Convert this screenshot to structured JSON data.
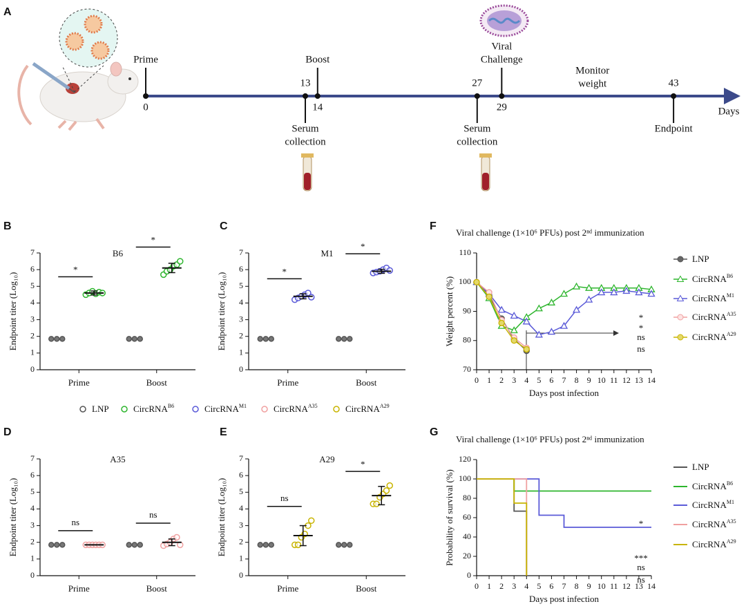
{
  "timeline": {
    "panel": "A",
    "axis_label": "Days",
    "annotation": [
      "Monitor",
      "weight"
    ],
    "events": [
      {
        "day": 0,
        "label": [
          "Prime"
        ],
        "side": "above"
      },
      {
        "day": 13,
        "label": [
          "Serum",
          "collection"
        ],
        "side": "below"
      },
      {
        "day": 14,
        "label": [
          "Boost"
        ],
        "side": "above"
      },
      {
        "day": 27,
        "label": [
          "Serum",
          "collection"
        ],
        "side": "below"
      },
      {
        "day": 29,
        "label": [
          "Viral",
          "Challenge"
        ],
        "side": "above"
      },
      {
        "day": 43,
        "label": [
          "Endpoint"
        ],
        "side": "below"
      }
    ]
  },
  "shared_legend": [
    {
      "name": "LNP",
      "color": "#555555"
    },
    {
      "name": "CircRNA",
      "sup": "B6",
      "color": "#2db52d"
    },
    {
      "name": "CircRNA",
      "sup": "M1",
      "color": "#5a5ad8"
    },
    {
      "name": "CircRNA",
      "sup": "A35",
      "color": "#f0a0a0"
    },
    {
      "name": "CircRNA",
      "sup": "A29",
      "color": "#c8b400"
    }
  ],
  "chart_data": [
    {
      "panel": "B",
      "type": "dot",
      "title": "B6",
      "ylabel": "Endpoint titer (Log₁₀)",
      "categories": [
        "Prime",
        "Boost"
      ],
      "ylim": [
        0,
        7
      ],
      "yticks": [
        0,
        1,
        2,
        3,
        4,
        5,
        6,
        7
      ],
      "series": [
        {
          "color": "#555555",
          "values": [
            [
              1.85,
              1.85,
              1.85
            ],
            [
              1.85,
              1.85,
              1.85
            ]
          ]
        },
        {
          "color": "#2db52d",
          "values": [
            [
              4.5,
              4.6,
              4.7,
              4.55,
              4.65,
              4.6
            ],
            [
              5.7,
              5.9,
              6.0,
              6.2,
              6.3,
              6.5
            ]
          ],
          "mean": [
            4.6,
            6.1
          ],
          "sd": [
            0.12,
            0.28
          ]
        }
      ],
      "significance": [
        "*",
        "*"
      ]
    },
    {
      "panel": "C",
      "type": "dot",
      "title": "M1",
      "ylabel": "Endpoint titer (Log₁₀)",
      "categories": [
        "Prime",
        "Boost"
      ],
      "ylim": [
        0,
        7
      ],
      "yticks": [
        0,
        1,
        2,
        3,
        4,
        5,
        6,
        7
      ],
      "series": [
        {
          "color": "#555555",
          "values": [
            [
              1.85,
              1.85,
              1.85
            ],
            [
              1.85,
              1.85,
              1.85
            ]
          ]
        },
        {
          "color": "#5a5ad8",
          "values": [
            [
              4.2,
              4.3,
              4.4,
              4.5,
              4.6,
              4.35
            ],
            [
              5.8,
              5.85,
              5.9,
              6.0,
              6.1,
              5.95
            ]
          ],
          "mean": [
            4.4,
            5.9
          ],
          "sd": [
            0.15,
            0.12
          ]
        }
      ],
      "significance": [
        "*",
        "*"
      ]
    },
    {
      "panel": "D",
      "type": "dot",
      "title": "A35",
      "ylabel": "Endpoint titer (Log₁₀)",
      "categories": [
        "Prime",
        "Boost"
      ],
      "ylim": [
        0,
        7
      ],
      "yticks": [
        0,
        1,
        2,
        3,
        4,
        5,
        6,
        7
      ],
      "series": [
        {
          "color": "#555555",
          "values": [
            [
              1.85,
              1.85,
              1.85
            ],
            [
              1.85,
              1.85,
              1.85
            ]
          ]
        },
        {
          "color": "#f0a0a0",
          "values": [
            [
              1.85,
              1.85,
              1.85,
              1.85,
              1.85,
              1.85
            ],
            [
              1.8,
              1.9,
              2.0,
              2.2,
              2.3,
              1.85
            ]
          ],
          "mean": [
            1.85,
            2.0
          ],
          "sd": [
            0,
            0.2
          ]
        }
      ],
      "significance": [
        "ns",
        "ns"
      ]
    },
    {
      "panel": "E",
      "type": "dot",
      "title": "A29",
      "ylabel": "Endpoint titer (Log₁₀)",
      "categories": [
        "Prime",
        "Boost"
      ],
      "ylim": [
        0,
        7
      ],
      "yticks": [
        0,
        1,
        2,
        3,
        4,
        5,
        6,
        7
      ],
      "series": [
        {
          "color": "#555555",
          "values": [
            [
              1.85,
              1.85,
              1.85
            ],
            [
              1.85,
              1.85,
              1.85
            ]
          ]
        },
        {
          "color": "#c8b400",
          "values": [
            [
              1.85,
              1.85,
              2.3,
              2.5,
              3.0,
              3.3
            ],
            [
              4.3,
              4.3,
              4.7,
              4.9,
              5.1,
              5.4
            ]
          ],
          "mean": [
            2.4,
            4.8
          ],
          "sd": [
            0.6,
            0.55
          ]
        }
      ],
      "significance": [
        "ns",
        "*"
      ]
    },
    {
      "panel": "F",
      "type": "line",
      "title": "Viral challenge (1×10⁶ PFUs) post 2ⁿᵈ immunization",
      "xlabel": "Days post infection",
      "ylabel": "Weight percent (%)",
      "x": [
        0,
        1,
        2,
        3,
        4,
        5,
        6,
        7,
        8,
        9,
        10,
        11,
        12,
        13,
        14
      ],
      "xlim": [
        0,
        14
      ],
      "xticks": [
        0,
        1,
        2,
        3,
        4,
        5,
        6,
        7,
        8,
        9,
        10,
        11,
        12,
        13,
        14
      ],
      "ylim": [
        70,
        110
      ],
      "yticks": [
        70,
        80,
        90,
        100,
        110
      ],
      "series": [
        {
          "name": "LNP",
          "color": "#555555",
          "marker": "filled-circle",
          "values": [
            100,
            95.5,
            87.5,
            80.5,
            76.5,
            null,
            null,
            null,
            null,
            null,
            null,
            null,
            null,
            null,
            null
          ]
        },
        {
          "name": "CircRNA",
          "sup": "B6",
          "color": "#2db52d",
          "marker": "triangle",
          "significance": "*",
          "values": [
            100,
            94.5,
            85,
            83.5,
            88,
            91,
            93,
            96,
            98.5,
            98,
            98,
            98,
            98,
            98,
            97.5
          ]
        },
        {
          "name": "CircRNA",
          "sup": "M1",
          "color": "#5a5ad8",
          "marker": "triangle",
          "significance": "*",
          "values": [
            100,
            96,
            90.5,
            88.5,
            86.5,
            82,
            83,
            85,
            90.5,
            94,
            96.5,
            96.5,
            97,
            96.5,
            96
          ]
        },
        {
          "name": "CircRNA",
          "sup": "A35",
          "color": "#f0a0a0",
          "marker": "circle",
          "significance": "ns",
          "values": [
            100,
            96.5,
            87,
            81,
            77.5,
            null,
            null,
            null,
            null,
            null,
            null,
            null,
            null,
            null,
            null
          ]
        },
        {
          "name": "CircRNA",
          "sup": "A29",
          "color": "#c8b400",
          "marker": "half-circle",
          "significance": "ns",
          "values": [
            100,
            95,
            86,
            80,
            77,
            null,
            null,
            null,
            null,
            null,
            null,
            null,
            null,
            null,
            null
          ]
        }
      ]
    },
    {
      "panel": "G",
      "type": "step",
      "title": "Viral challenge (1×10⁶ PFUs) post 2ⁿᵈ immunization",
      "xlabel": "Days post infection",
      "ylabel": "Probability of survival (%)",
      "xlim": [
        0,
        14
      ],
      "xticks": [
        0,
        1,
        2,
        3,
        4,
        5,
        6,
        7,
        8,
        9,
        10,
        11,
        12,
        13,
        14
      ],
      "ylim": [
        0,
        120
      ],
      "yticks": [
        0,
        20,
        40,
        60,
        80,
        100,
        120
      ],
      "series": [
        {
          "name": "LNP",
          "color": "#555555",
          "x": [
            0,
            3,
            4
          ],
          "values": [
            100,
            66.7,
            0
          ]
        },
        {
          "name": "CircRNA",
          "sup": "B6",
          "color": "#2db52d",
          "significance": "*",
          "x": [
            0,
            3,
            14
          ],
          "values": [
            100,
            87.5,
            87.5
          ]
        },
        {
          "name": "CircRNA",
          "sup": "M1",
          "color": "#5a5ad8",
          "significance": "***",
          "x": [
            0,
            5,
            7,
            14
          ],
          "values": [
            100,
            62.5,
            50,
            50
          ]
        },
        {
          "name": "CircRNA",
          "sup": "A35",
          "color": "#f0a0a0",
          "significance": "ns",
          "x": [
            0,
            4
          ],
          "values": [
            100,
            0
          ]
        },
        {
          "name": "CircRNA",
          "sup": "A29",
          "color": "#c8b400",
          "significance": "ns",
          "x": [
            0,
            3,
            4
          ],
          "values": [
            100,
            75,
            0
          ]
        }
      ]
    }
  ]
}
